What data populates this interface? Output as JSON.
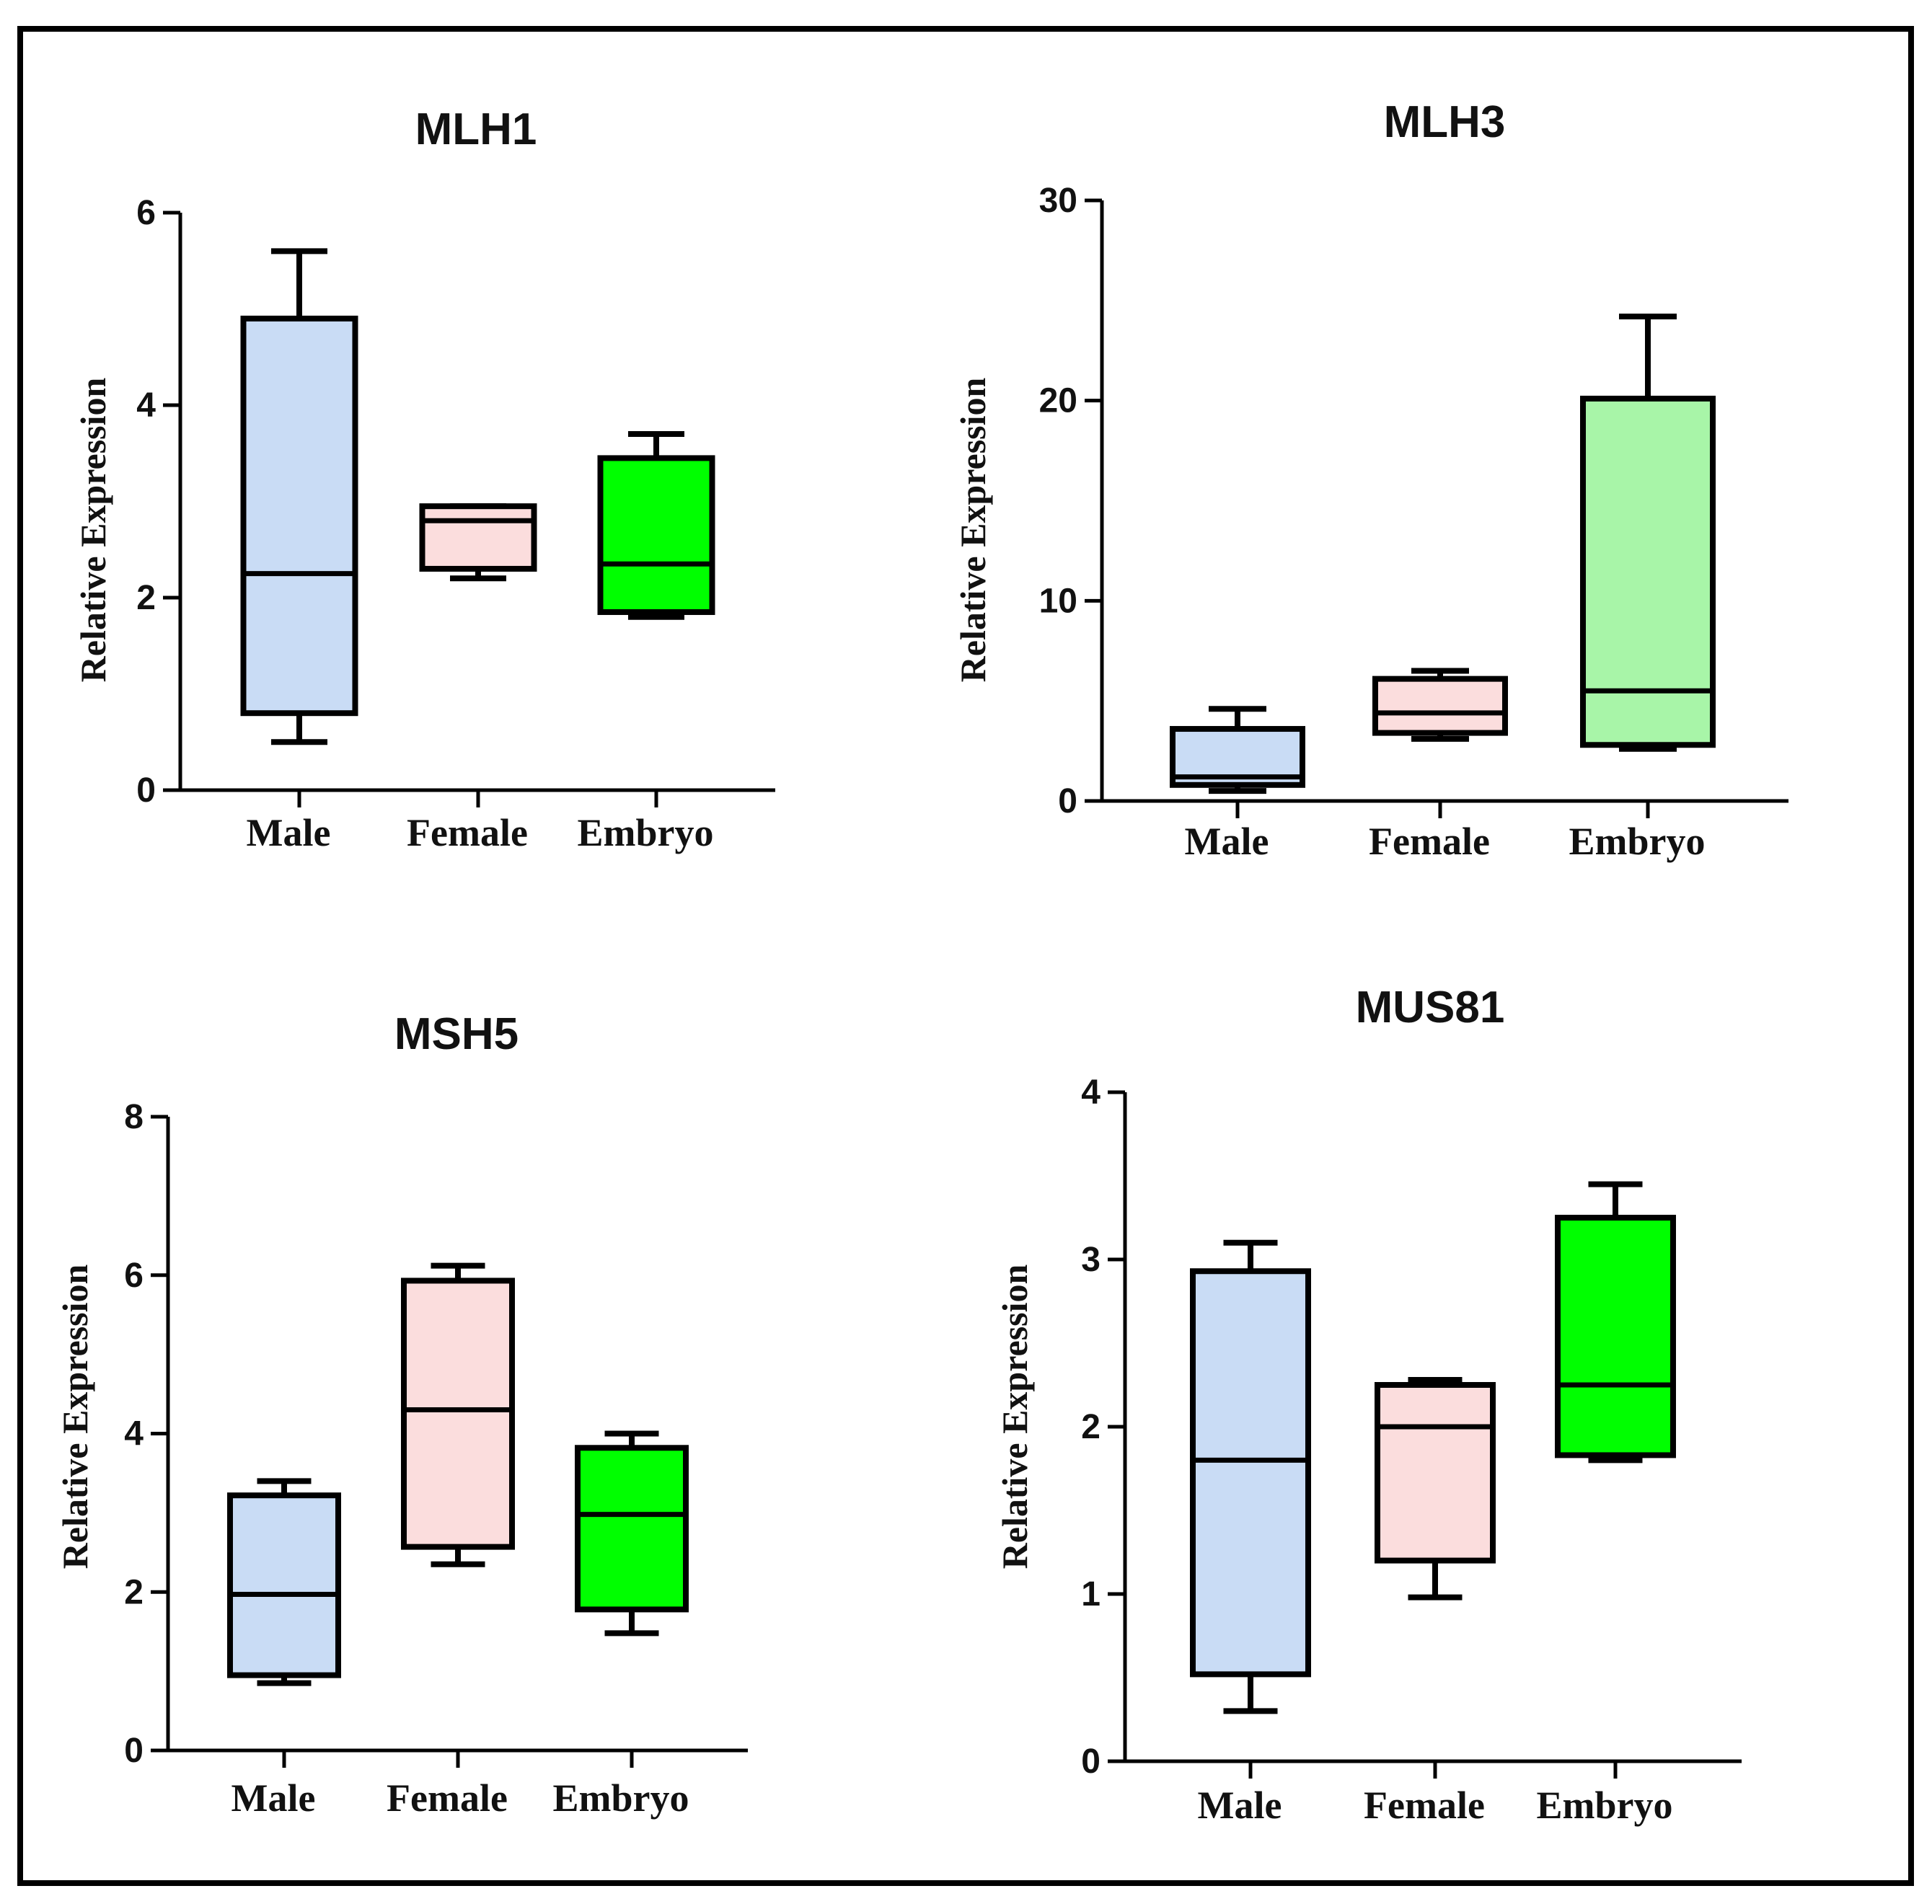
{
  "chart_data": [
    {
      "type": "box",
      "title": "MLH1",
      "ylabel": "Relative Expression",
      "xlabel": "",
      "ylim": [
        0,
        6
      ],
      "yticks": [
        0,
        2,
        4,
        6
      ],
      "categories": [
        "Male",
        "Female",
        "Embryo"
      ],
      "boxes": [
        {
          "category": "Male",
          "min": 0.5,
          "q1": 0.8,
          "median": 2.25,
          "q3": 4.9,
          "max": 5.6,
          "color": "#c9dcf5"
        },
        {
          "category": "Female",
          "min": 2.2,
          "q1": 2.3,
          "median": 2.8,
          "q3": 2.95,
          "max": 2.95,
          "color": "#fbdddd"
        },
        {
          "category": "Embryo",
          "min": 1.8,
          "q1": 1.85,
          "median": 2.35,
          "q3": 3.45,
          "max": 3.7,
          "color": "#00ff00"
        }
      ]
    },
    {
      "type": "box",
      "title": "MLH3",
      "ylabel": "Relative Expression",
      "xlabel": "",
      "ylim": [
        0,
        30
      ],
      "yticks": [
        0,
        10,
        20,
        30
      ],
      "categories": [
        "Male",
        "Female",
        "Embryo"
      ],
      "boxes": [
        {
          "category": "Male",
          "min": 0.5,
          "q1": 0.8,
          "median": 1.2,
          "q3": 3.6,
          "max": 4.6,
          "color": "#c9dcf5"
        },
        {
          "category": "Female",
          "min": 3.1,
          "q1": 3.4,
          "median": 4.4,
          "q3": 6.1,
          "max": 6.5,
          "color": "#fbdddd"
        },
        {
          "category": "Embryo",
          "min": 2.6,
          "q1": 2.8,
          "median": 5.5,
          "q3": 20.1,
          "max": 24.2,
          "color": "#a8f5a8"
        }
      ]
    },
    {
      "type": "box",
      "title": "MSH5",
      "ylabel": "Relative Expression",
      "xlabel": "",
      "ylim": [
        0,
        8
      ],
      "yticks": [
        0,
        2,
        4,
        6,
        8
      ],
      "categories": [
        "Male",
        "Female",
        "Embryo"
      ],
      "boxes": [
        {
          "category": "Male",
          "min": 0.85,
          "q1": 0.95,
          "median": 1.97,
          "q3": 3.22,
          "max": 3.4,
          "color": "#c9dcf5"
        },
        {
          "category": "Female",
          "min": 2.35,
          "q1": 2.57,
          "median": 4.3,
          "q3": 5.93,
          "max": 6.12,
          "color": "#fbdddd"
        },
        {
          "category": "Embryo",
          "min": 1.48,
          "q1": 1.78,
          "median": 2.98,
          "q3": 3.82,
          "max": 4.0,
          "color": "#00ff00"
        }
      ]
    },
    {
      "type": "box",
      "title": "MUS81",
      "ylabel": "Relative Expression",
      "xlabel": "",
      "ylim": [
        0,
        4
      ],
      "yticks": [
        0,
        1,
        2,
        3,
        4
      ],
      "categories": [
        "Male",
        "Female",
        "Embryo"
      ],
      "boxes": [
        {
          "category": "Male",
          "min": 0.3,
          "q1": 0.52,
          "median": 1.8,
          "q3": 2.93,
          "max": 3.1,
          "color": "#c9dcf5"
        },
        {
          "category": "Female",
          "min": 0.98,
          "q1": 1.2,
          "median": 2.0,
          "q3": 2.25,
          "max": 2.28,
          "color": "#fbdddd"
        },
        {
          "category": "Embryo",
          "min": 1.8,
          "q1": 1.83,
          "median": 2.25,
          "q3": 3.25,
          "max": 3.45,
          "color": "#00ff00"
        }
      ]
    }
  ]
}
